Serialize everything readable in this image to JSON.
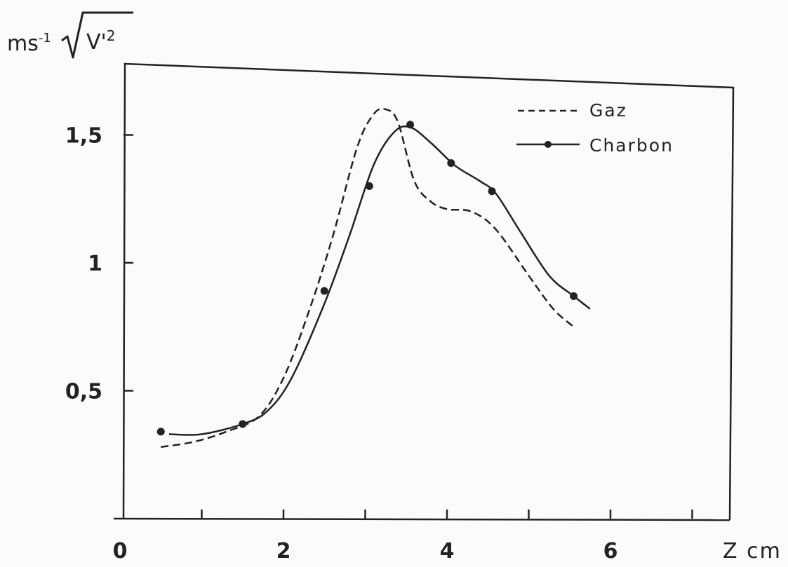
{
  "chart_data": {
    "type": "line",
    "ylabel": {
      "prefix": "ms",
      "exponent": "-1",
      "radicand": "V'",
      "radicand_exponent": "2"
    },
    "xlabel": "Z cm",
    "x_ticks": [
      {
        "value": 0,
        "label": "0"
      },
      {
        "value": 2,
        "label": "2"
      },
      {
        "value": 4,
        "label": "4"
      },
      {
        "value": 6,
        "label": "6"
      }
    ],
    "y_ticks": [
      {
        "value": 0.5,
        "label": "0,5"
      },
      {
        "value": 1,
        "label": "1"
      },
      {
        "value": 1.5,
        "label": "1,5"
      }
    ],
    "xlim": [
      0,
      7.2
    ],
    "ylim": [
      0,
      1.75
    ],
    "grid": false,
    "legend_position": "top-right",
    "series": [
      {
        "name": "Gaz",
        "style": "dashed",
        "markers": false,
        "color": "#222222",
        "x": [
          0.5,
          0.9,
          1.3,
          1.7,
          2.0,
          2.3,
          2.6,
          2.9,
          3.1,
          3.25,
          3.4,
          3.6,
          3.8,
          4.0,
          4.3,
          4.6,
          5.0,
          5.3,
          5.55
        ],
        "y": [
          0.28,
          0.3,
          0.34,
          0.4,
          0.55,
          0.8,
          1.1,
          1.45,
          1.58,
          1.6,
          1.55,
          1.32,
          1.24,
          1.21,
          1.2,
          1.13,
          0.95,
          0.82,
          0.75
        ]
      },
      {
        "name": "Charbon",
        "style": "solid",
        "markers": false,
        "color": "#222222",
        "x": [
          0.6,
          1.0,
          1.5,
          1.8,
          2.1,
          2.5,
          2.8,
          3.1,
          3.35,
          3.55,
          3.8,
          4.1,
          4.4,
          4.6,
          4.9,
          5.25,
          5.55,
          5.75
        ],
        "y": [
          0.33,
          0.33,
          0.37,
          0.42,
          0.55,
          0.84,
          1.1,
          1.38,
          1.51,
          1.53,
          1.47,
          1.38,
          1.32,
          1.27,
          1.12,
          0.95,
          0.87,
          0.82
        ]
      },
      {
        "name": "Charbon",
        "style": "points",
        "markers": true,
        "color": "#222222",
        "x": [
          0.5,
          1.5,
          2.5,
          3.05,
          3.55,
          4.05,
          4.55,
          5.55
        ],
        "y": [
          0.34,
          0.37,
          0.89,
          1.3,
          1.54,
          1.39,
          1.28,
          0.87
        ]
      }
    ]
  }
}
